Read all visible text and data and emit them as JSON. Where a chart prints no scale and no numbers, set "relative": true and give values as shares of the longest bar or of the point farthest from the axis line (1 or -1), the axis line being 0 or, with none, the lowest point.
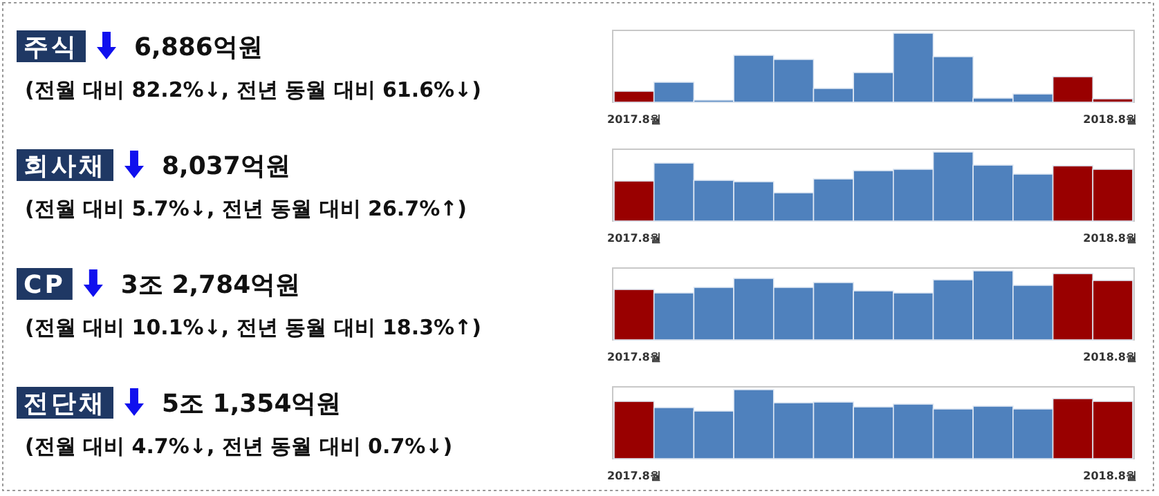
{
  "chart_data": [
    {
      "type": "other",
      "title": "주식",
      "subtitle": "6,886억원",
      "annotations": [
        "(전월 대비 82.2%↓, 전년 동월 대비 61.6%↓)"
      ]
    },
    {
      "type": "bar",
      "relative": true,
      "categories": [
        "2017.8월",
        null,
        null,
        null,
        null,
        null,
        null,
        null,
        null,
        null,
        null,
        null,
        "2018.8월"
      ],
      "values": [
        0.16,
        0.29,
        0.03,
        0.68,
        0.62,
        0.2,
        0.43,
        1,
        0.66,
        0.06,
        0.12,
        0.37,
        0.05
      ],
      "colors": [
        "#990000",
        "#4f81bd",
        "#4f81bd",
        "#4f81bd",
        "#4f81bd",
        "#4f81bd",
        "#4f81bd",
        "#4f81bd",
        "#4f81bd",
        "#4f81bd",
        "#4f81bd",
        "#990000",
        "#990000"
      ]
    },
    {
      "type": "other",
      "title": "회사채",
      "subtitle": "8,037억원",
      "annotations": [
        "(전월 대비 5.7%↓, 전년 동월 대비 26.7%↑)"
      ]
    },
    {
      "type": "bar",
      "relative": true,
      "categories": [
        "2017.8월",
        null,
        null,
        null,
        null,
        null,
        null,
        null,
        null,
        null,
        null,
        null,
        "2018.8월"
      ],
      "values": [
        0.58,
        0.84,
        0.59,
        0.57,
        0.41,
        0.61,
        0.73,
        0.75,
        1,
        0.81,
        0.68,
        0.8,
        0.75
      ],
      "colors": [
        "#990000",
        "#4f81bd",
        "#4f81bd",
        "#4f81bd",
        "#4f81bd",
        "#4f81bd",
        "#4f81bd",
        "#4f81bd",
        "#4f81bd",
        "#4f81bd",
        "#4f81bd",
        "#990000",
        "#990000"
      ]
    },
    {
      "type": "other",
      "title": "CP",
      "subtitle": "3조 2,784억원",
      "annotations": [
        "(전월 대비 10.1%↓, 전년 동월 대비 18.3%↑)"
      ]
    },
    {
      "type": "bar",
      "relative": true,
      "categories": [
        "2017.8월",
        null,
        null,
        null,
        null,
        null,
        null,
        null,
        null,
        null,
        null,
        null,
        "2018.8월"
      ],
      "values": [
        0.73,
        0.68,
        0.76,
        0.89,
        0.76,
        0.83,
        0.71,
        0.68,
        0.87,
        1,
        0.79,
        0.96,
        0.86
      ],
      "colors": [
        "#990000",
        "#4f81bd",
        "#4f81bd",
        "#4f81bd",
        "#4f81bd",
        "#4f81bd",
        "#4f81bd",
        "#4f81bd",
        "#4f81bd",
        "#4f81bd",
        "#4f81bd",
        "#990000",
        "#990000"
      ]
    },
    {
      "type": "other",
      "title": "전단채",
      "subtitle": "5조 1,354억원",
      "annotations": [
        "(전월 대비 4.7%↓, 전년 동월 대비 0.7%↓)"
      ]
    },
    {
      "type": "bar",
      "relative": true,
      "categories": [
        "2017.8월",
        null,
        null,
        null,
        null,
        null,
        null,
        null,
        null,
        null,
        null,
        null,
        "2018.8월"
      ],
      "values": [
        0.83,
        0.74,
        0.69,
        1,
        0.81,
        0.82,
        0.75,
        0.79,
        0.72,
        0.76,
        0.72,
        0.87,
        0.83
      ],
      "colors": [
        "#990000",
        "#4f81bd",
        "#4f81bd",
        "#4f81bd",
        "#4f81bd",
        "#4f81bd",
        "#4f81bd",
        "#4f81bd",
        "#4f81bd",
        "#4f81bd",
        "#4f81bd",
        "#990000",
        "#990000"
      ]
    }
  ]
}
